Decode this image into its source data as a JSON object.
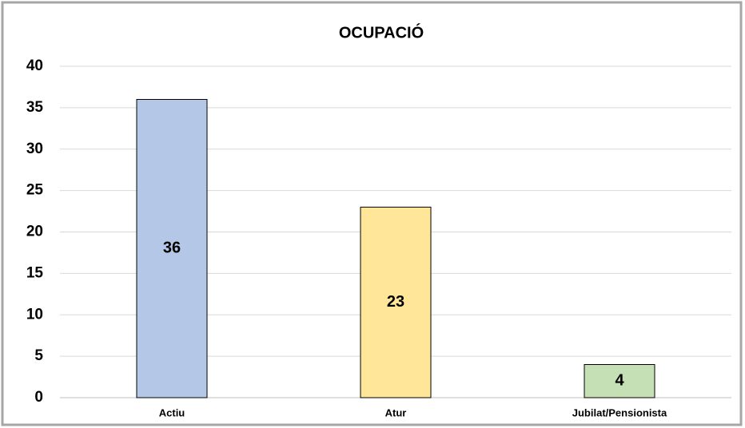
{
  "chart_data": {
    "type": "bar",
    "title": "OCUPACIÓ",
    "categories": [
      "Actiu",
      "Atur",
      "Jubilat/Pensionista"
    ],
    "values": [
      36,
      23,
      4
    ],
    "colors": [
      "#b4c7e7",
      "#ffe699",
      "#c5e0b4"
    ],
    "ylim": [
      0,
      40
    ],
    "yticks": [
      0,
      5,
      10,
      15,
      20,
      25,
      30,
      35,
      40
    ],
    "grid": true
  }
}
